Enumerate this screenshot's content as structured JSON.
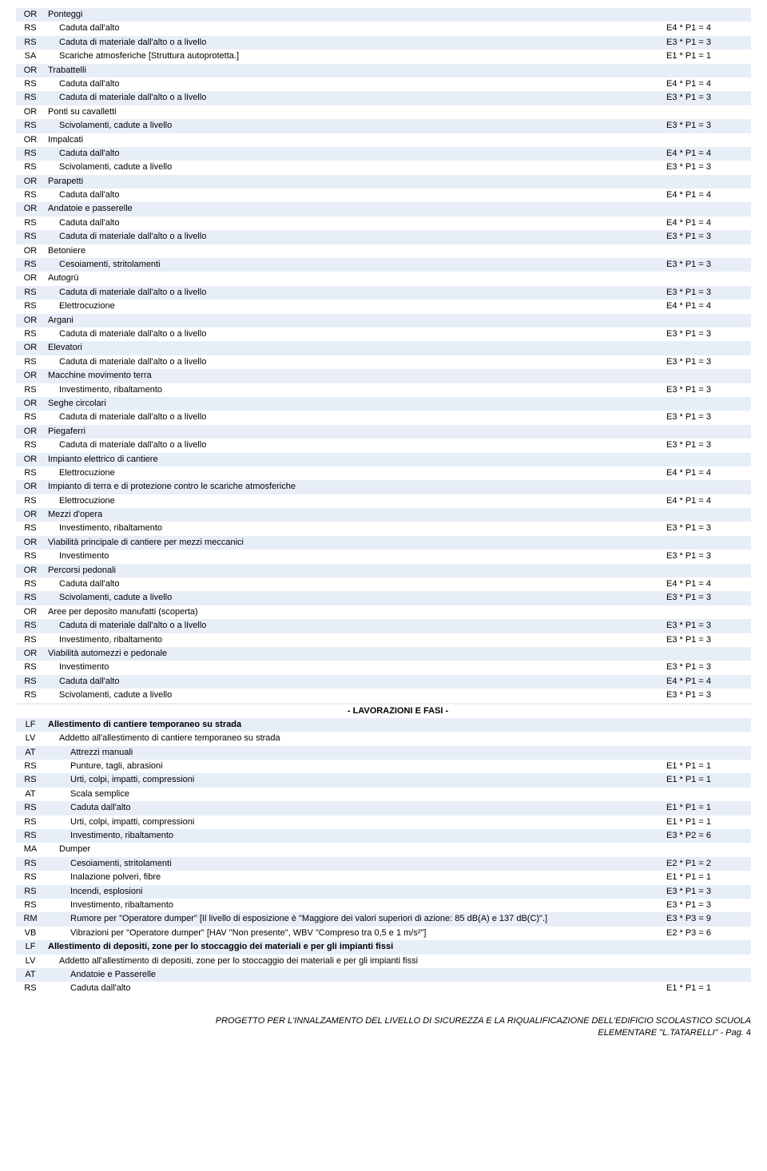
{
  "rows": [
    {
      "code": "OR",
      "desc": "Ponteggi",
      "val": "",
      "indent": 0,
      "bold": false
    },
    {
      "code": "RS",
      "desc": "Caduta dall'alto",
      "val": "E4 * P1 = 4",
      "indent": 1,
      "bold": false
    },
    {
      "code": "RS",
      "desc": "Caduta di materiale dall'alto o a livello",
      "val": "E3 * P1 = 3",
      "indent": 1,
      "bold": false
    },
    {
      "code": "SA",
      "desc": "Scariche atmosferiche [Struttura autoprotetta.]",
      "val": "E1 * P1 = 1",
      "indent": 1,
      "bold": false
    },
    {
      "code": "OR",
      "desc": "Trabattelli",
      "val": "",
      "indent": 0,
      "bold": false
    },
    {
      "code": "RS",
      "desc": "Caduta dall'alto",
      "val": "E4 * P1 = 4",
      "indent": 1,
      "bold": false
    },
    {
      "code": "RS",
      "desc": "Caduta di materiale dall'alto o a livello",
      "val": "E3 * P1 = 3",
      "indent": 1,
      "bold": false
    },
    {
      "code": "OR",
      "desc": "Ponti su cavalletti",
      "val": "",
      "indent": 0,
      "bold": false
    },
    {
      "code": "RS",
      "desc": "Scivolamenti, cadute a livello",
      "val": "E3 * P1 = 3",
      "indent": 1,
      "bold": false
    },
    {
      "code": "OR",
      "desc": "Impalcati",
      "val": "",
      "indent": 0,
      "bold": false
    },
    {
      "code": "RS",
      "desc": "Caduta dall'alto",
      "val": "E4 * P1 = 4",
      "indent": 1,
      "bold": false
    },
    {
      "code": "RS",
      "desc": "Scivolamenti, cadute a livello",
      "val": "E3 * P1 = 3",
      "indent": 1,
      "bold": false
    },
    {
      "code": "OR",
      "desc": "Parapetti",
      "val": "",
      "indent": 0,
      "bold": false
    },
    {
      "code": "RS",
      "desc": "Caduta dall'alto",
      "val": "E4 * P1 = 4",
      "indent": 1,
      "bold": false
    },
    {
      "code": "OR",
      "desc": "Andatoie e passerelle",
      "val": "",
      "indent": 0,
      "bold": false
    },
    {
      "code": "RS",
      "desc": "Caduta dall'alto",
      "val": "E4 * P1 = 4",
      "indent": 1,
      "bold": false
    },
    {
      "code": "RS",
      "desc": "Caduta di materiale dall'alto o a livello",
      "val": "E3 * P1 = 3",
      "indent": 1,
      "bold": false
    },
    {
      "code": "OR",
      "desc": "Betoniere",
      "val": "",
      "indent": 0,
      "bold": false
    },
    {
      "code": "RS",
      "desc": "Cesoiamenti, stritolamenti",
      "val": "E3 * P1 = 3",
      "indent": 1,
      "bold": false
    },
    {
      "code": "OR",
      "desc": "Autogrù",
      "val": "",
      "indent": 0,
      "bold": false
    },
    {
      "code": "RS",
      "desc": "Caduta di materiale dall'alto o a livello",
      "val": "E3 * P1 = 3",
      "indent": 1,
      "bold": false
    },
    {
      "code": "RS",
      "desc": "Elettrocuzione",
      "val": "E4 * P1 = 4",
      "indent": 1,
      "bold": false
    },
    {
      "code": "OR",
      "desc": "Argani",
      "val": "",
      "indent": 0,
      "bold": false
    },
    {
      "code": "RS",
      "desc": "Caduta di materiale dall'alto o a livello",
      "val": "E3 * P1 = 3",
      "indent": 1,
      "bold": false
    },
    {
      "code": "OR",
      "desc": "Elevatori",
      "val": "",
      "indent": 0,
      "bold": false
    },
    {
      "code": "RS",
      "desc": "Caduta di materiale dall'alto o a livello",
      "val": "E3 * P1 = 3",
      "indent": 1,
      "bold": false
    },
    {
      "code": "OR",
      "desc": "Macchine movimento terra",
      "val": "",
      "indent": 0,
      "bold": false
    },
    {
      "code": "RS",
      "desc": "Investimento, ribaltamento",
      "val": "E3 * P1 = 3",
      "indent": 1,
      "bold": false
    },
    {
      "code": "OR",
      "desc": "Seghe circolari",
      "val": "",
      "indent": 0,
      "bold": false
    },
    {
      "code": "RS",
      "desc": "Caduta di materiale dall'alto o a livello",
      "val": "E3 * P1 = 3",
      "indent": 1,
      "bold": false
    },
    {
      "code": "OR",
      "desc": "Piegaferri",
      "val": "",
      "indent": 0,
      "bold": false
    },
    {
      "code": "RS",
      "desc": "Caduta di materiale dall'alto o a livello",
      "val": "E3 * P1 = 3",
      "indent": 1,
      "bold": false
    },
    {
      "code": "OR",
      "desc": "Impianto elettrico di cantiere",
      "val": "",
      "indent": 0,
      "bold": false
    },
    {
      "code": "RS",
      "desc": "Elettrocuzione",
      "val": "E4 * P1 = 4",
      "indent": 1,
      "bold": false
    },
    {
      "code": "OR",
      "desc": "Impianto di terra e di protezione contro le scariche atmosferiche",
      "val": "",
      "indent": 0,
      "bold": false
    },
    {
      "code": "RS",
      "desc": "Elettrocuzione",
      "val": "E4 * P1 = 4",
      "indent": 1,
      "bold": false
    },
    {
      "code": "OR",
      "desc": "Mezzi d'opera",
      "val": "",
      "indent": 0,
      "bold": false
    },
    {
      "code": "RS",
      "desc": "Investimento, ribaltamento",
      "val": "E3 * P1 = 3",
      "indent": 1,
      "bold": false
    },
    {
      "code": "OR",
      "desc": "Viabilità principale di cantiere per mezzi meccanici",
      "val": "",
      "indent": 0,
      "bold": false
    },
    {
      "code": "RS",
      "desc": "Investimento",
      "val": "E3 * P1 = 3",
      "indent": 1,
      "bold": false
    },
    {
      "code": "OR",
      "desc": "Percorsi pedonali",
      "val": "",
      "indent": 0,
      "bold": false
    },
    {
      "code": "RS",
      "desc": "Caduta dall'alto",
      "val": "E4 * P1 = 4",
      "indent": 1,
      "bold": false
    },
    {
      "code": "RS",
      "desc": "Scivolamenti, cadute a livello",
      "val": "E3 * P1 = 3",
      "indent": 1,
      "bold": false
    },
    {
      "code": "OR",
      "desc": "Aree per deposito manufatti (scoperta)",
      "val": "",
      "indent": 0,
      "bold": false
    },
    {
      "code": "RS",
      "desc": "Caduta di materiale dall'alto o a livello",
      "val": "E3 * P1 = 3",
      "indent": 1,
      "bold": false
    },
    {
      "code": "RS",
      "desc": "Investimento, ribaltamento",
      "val": "E3 * P1 = 3",
      "indent": 1,
      "bold": false
    },
    {
      "code": "OR",
      "desc": "Viabilità automezzi e pedonale",
      "val": "",
      "indent": 0,
      "bold": false
    },
    {
      "code": "RS",
      "desc": "Investimento",
      "val": "E3 * P1 = 3",
      "indent": 1,
      "bold": false
    },
    {
      "code": "RS",
      "desc": "Caduta dall'alto",
      "val": "E4 * P1 = 4",
      "indent": 1,
      "bold": false
    },
    {
      "code": "RS",
      "desc": "Scivolamenti, cadute a livello",
      "val": "E3 * P1 = 3",
      "indent": 1,
      "bold": false
    },
    {
      "code": "",
      "desc": "",
      "val": "",
      "indent": 0,
      "bold": false,
      "blank": true
    },
    {
      "code": "",
      "desc": "- LAVORAZIONI E FASI -",
      "val": "",
      "indent": 0,
      "bold": true,
      "center": true
    },
    {
      "code": "LF",
      "desc": "Allestimento di cantiere temporaneo su strada",
      "val": "",
      "indent": 0,
      "bold": true
    },
    {
      "code": "LV",
      "desc": "Addetto all'allestimento di cantiere temporaneo su strada",
      "val": "",
      "indent": 1,
      "bold": false
    },
    {
      "code": "AT",
      "desc": "Attrezzi manuali",
      "val": "",
      "indent": 2,
      "bold": false
    },
    {
      "code": "RS",
      "desc": "Punture, tagli, abrasioni",
      "val": "E1 * P1 = 1",
      "indent": 2,
      "bold": false
    },
    {
      "code": "RS",
      "desc": "Urti, colpi, impatti, compressioni",
      "val": "E1 * P1 = 1",
      "indent": 2,
      "bold": false
    },
    {
      "code": "AT",
      "desc": "Scala semplice",
      "val": "",
      "indent": 2,
      "bold": false
    },
    {
      "code": "RS",
      "desc": "Caduta dall'alto",
      "val": "E1 * P1 = 1",
      "indent": 2,
      "bold": false
    },
    {
      "code": "RS",
      "desc": "Urti, colpi, impatti, compressioni",
      "val": "E1 * P1 = 1",
      "indent": 2,
      "bold": false
    },
    {
      "code": "RS",
      "desc": "Investimento, ribaltamento",
      "val": "E3 * P2 = 6",
      "indent": 2,
      "bold": false
    },
    {
      "code": "MA",
      "desc": "Dumper",
      "val": "",
      "indent": 1,
      "bold": false
    },
    {
      "code": "RS",
      "desc": "Cesoiamenti, stritolamenti",
      "val": "E2 * P1 = 2",
      "indent": 2,
      "bold": false
    },
    {
      "code": "RS",
      "desc": "Inalazione polveri, fibre",
      "val": "E1 * P1 = 1",
      "indent": 2,
      "bold": false
    },
    {
      "code": "RS",
      "desc": "Incendi, esplosioni",
      "val": "E3 * P1 = 3",
      "indent": 2,
      "bold": false
    },
    {
      "code": "RS",
      "desc": "Investimento, ribaltamento",
      "val": "E3 * P1 = 3",
      "indent": 2,
      "bold": false
    },
    {
      "code": "RM",
      "desc": "Rumore per \"Operatore dumper\" [Il livello di esposizione è \"Maggiore dei valori superiori di azione: 85 dB(A) e 137 dB(C)\".]",
      "val": "E3 * P3 = 9",
      "indent": 2,
      "bold": false
    },
    {
      "code": "VB",
      "desc": "Vibrazioni per \"Operatore dumper\" [HAV \"Non presente\", WBV \"Compreso tra 0,5 e 1 m/s²\"]",
      "val": "E2 * P3 = 6",
      "indent": 2,
      "bold": false
    },
    {
      "code": "LF",
      "desc": "Allestimento di depositi, zone per lo stoccaggio dei materiali e per gli impianti fissi",
      "val": "",
      "indent": 0,
      "bold": true
    },
    {
      "code": "LV",
      "desc": "Addetto all'allestimento di depositi, zone per lo stoccaggio dei materiali e per gli impianti fissi",
      "val": "",
      "indent": 1,
      "bold": false
    },
    {
      "code": "AT",
      "desc": "Andatoie e Passerelle",
      "val": "",
      "indent": 2,
      "bold": false
    },
    {
      "code": "RS",
      "desc": "Caduta dall'alto",
      "val": "E1 * P1 = 1",
      "indent": 2,
      "bold": false
    }
  ],
  "footer": {
    "line1": "PROGETTO PER L'INNALZAMENTO DEL LIVELLO DI SICUREZZA E LA RIQUALIFICAZIONE DELL'EDIFICIO SCOLASTICO SCUOLA",
    "line2": "ELEMENTARE \"L.TATARELLI\" - Pag.",
    "page": "4"
  }
}
